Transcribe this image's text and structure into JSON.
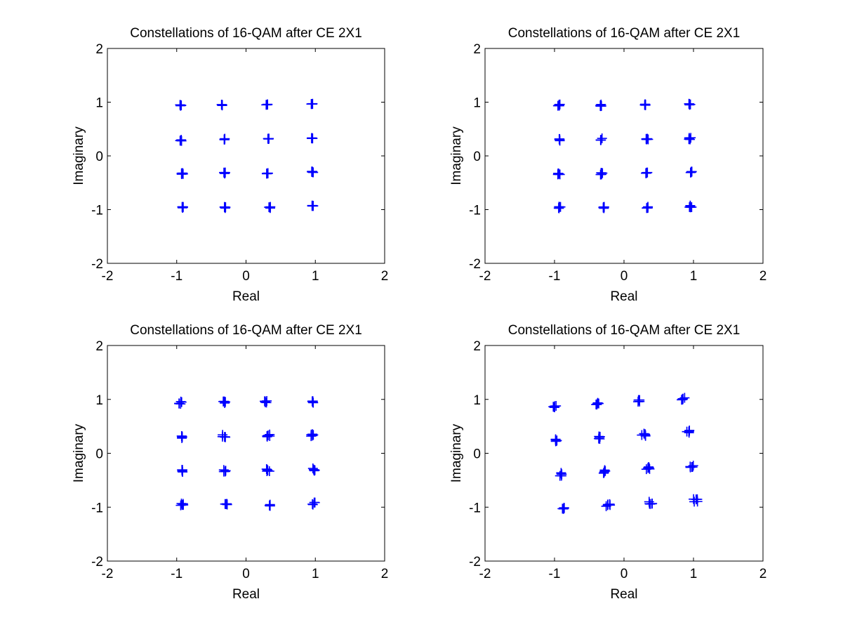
{
  "chart_data": [
    {
      "type": "scatter",
      "title": "Constellations of 16-QAM after CE 2X1",
      "xlabel": "Real",
      "ylabel": "Imaginary",
      "xlim": [
        -2,
        2
      ],
      "ylim": [
        -2,
        2
      ],
      "xticks": [
        -2,
        -1,
        0,
        1,
        2
      ],
      "yticks": [
        -2,
        -1,
        0,
        1,
        2
      ],
      "grid": false,
      "marker": "+",
      "color": "#0000ff",
      "series": [
        {
          "x": [
            -0.94,
            -0.35,
            0.3,
            0.95,
            -0.94,
            -0.31,
            0.32,
            0.95,
            -0.92,
            -0.31,
            0.31,
            0.96,
            -0.91,
            -0.3,
            0.34,
            0.96
          ],
          "y": [
            0.94,
            0.95,
            0.95,
            0.97,
            0.29,
            0.31,
            0.32,
            0.33,
            -0.33,
            -0.32,
            -0.32,
            -0.3,
            -0.96,
            -0.96,
            -0.96,
            -0.93
          ]
        }
      ]
    },
    {
      "type": "scatter",
      "title": "Constellations of 16-QAM after CE 2X1",
      "xlabel": "Real",
      "ylabel": "Imaginary",
      "xlim": [
        -2,
        2
      ],
      "ylim": [
        -2,
        2
      ],
      "xticks": [
        -2,
        -1,
        0,
        1,
        2
      ],
      "yticks": [
        -2,
        -1,
        0,
        1,
        2
      ],
      "grid": false,
      "marker": "+",
      "color": "#0000ff",
      "series": [
        {
          "x": [
            -0.94,
            -0.34,
            0.3,
            0.95,
            -0.94,
            -0.32,
            0.33,
            0.95,
            -0.94,
            -0.32,
            0.32,
            0.96,
            -0.93,
            -0.3,
            0.33,
            0.96
          ],
          "y": [
            0.94,
            0.94,
            0.96,
            0.96,
            0.3,
            0.31,
            0.31,
            0.32,
            -0.33,
            -0.33,
            -0.32,
            -0.31,
            -0.96,
            -0.96,
            -0.96,
            -0.94
          ]
        }
      ]
    },
    {
      "type": "scatter",
      "title": "Constellations of 16-QAM after CE 2X1",
      "xlabel": "Real",
      "ylabel": "Imaginary",
      "xlim": [
        -2,
        2
      ],
      "ylim": [
        -2,
        2
      ],
      "xticks": [
        -2,
        -1,
        0,
        1,
        2
      ],
      "yticks": [
        -2,
        -1,
        0,
        1,
        2
      ],
      "grid": false,
      "marker": "+",
      "color": "#0000ff",
      "series": [
        {
          "x": [
            -0.95,
            -0.32,
            0.29,
            0.95,
            -0.94,
            -0.32,
            0.32,
            0.96,
            -0.93,
            -0.3,
            0.32,
            0.97,
            -0.92,
            -0.29,
            0.33,
            0.98
          ],
          "y": [
            0.94,
            0.95,
            0.96,
            0.96,
            0.3,
            0.32,
            0.33,
            0.34,
            -0.33,
            -0.32,
            -0.31,
            -0.3,
            -0.95,
            -0.96,
            -0.96,
            -0.93
          ]
        }
      ]
    },
    {
      "type": "scatter",
      "title": "Constellations of 16-QAM after CE 2X1",
      "xlabel": "Real",
      "ylabel": "Imaginary",
      "xlim": [
        -2,
        2
      ],
      "ylim": [
        -2,
        2
      ],
      "xticks": [
        -2,
        -1,
        0,
        1,
        2
      ],
      "yticks": [
        -2,
        -1,
        0,
        1,
        2
      ],
      "grid": false,
      "marker": "+",
      "color": "#0000ff",
      "series": [
        {
          "x": [
            -1.0,
            -0.39,
            0.22,
            0.85,
            -0.96,
            -0.36,
            0.28,
            0.92,
            -0.91,
            -0.29,
            0.34,
            0.98,
            -0.86,
            -0.23,
            0.39,
            1.03
          ],
          "y": [
            0.86,
            0.92,
            0.98,
            1.02,
            0.24,
            0.29,
            0.35,
            0.4,
            -0.39,
            -0.34,
            -0.28,
            -0.25,
            -1.02,
            -0.97,
            -0.92,
            -0.87
          ]
        }
      ]
    }
  ]
}
